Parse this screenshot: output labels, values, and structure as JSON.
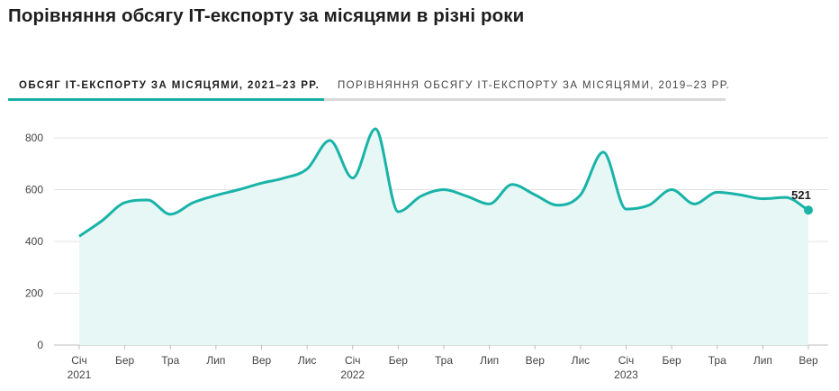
{
  "title": "Порівняння обсягу IT-експорту за місяцями в різні роки",
  "tabs": [
    {
      "label": "Обсяг IT-експорту за місяцями, 2021–23 рр.",
      "active": true
    },
    {
      "label": "Порівняння обсягу IT-експорту за місяцями, 2019–23 рр.",
      "active": false
    }
  ],
  "colors": {
    "line": "#19b3a8",
    "area": "#e6f7f6",
    "grid": "#e3e3e3",
    "tab_active": "#18b0a5"
  },
  "chart_data": {
    "type": "area",
    "ylim": [
      0,
      800
    ],
    "yticks": [
      0,
      200,
      400,
      600,
      800
    ],
    "grid": true,
    "x": [
      "2021-01",
      "2021-02",
      "2021-03",
      "2021-04",
      "2021-05",
      "2021-06",
      "2021-07",
      "2021-08",
      "2021-09",
      "2021-10",
      "2021-11",
      "2021-12",
      "2022-01",
      "2022-02",
      "2022-03",
      "2022-04",
      "2022-05",
      "2022-06",
      "2022-07",
      "2022-08",
      "2022-09",
      "2022-10",
      "2022-11",
      "2022-12",
      "2023-01",
      "2023-02",
      "2023-03",
      "2023-04",
      "2023-05",
      "2023-06",
      "2023-07",
      "2023-08",
      "2023-09"
    ],
    "values": [
      420,
      480,
      550,
      560,
      505,
      550,
      578,
      600,
      625,
      645,
      680,
      790,
      645,
      835,
      515,
      575,
      600,
      575,
      545,
      620,
      580,
      540,
      580,
      745,
      525,
      540,
      600,
      545,
      590,
      580,
      565,
      570,
      521
    ],
    "xtick_labels": [
      {
        "index": 0,
        "label": "Січ",
        "year": "2021"
      },
      {
        "index": 2,
        "label": "Бер"
      },
      {
        "index": 4,
        "label": "Тра"
      },
      {
        "index": 6,
        "label": "Лип"
      },
      {
        "index": 8,
        "label": "Вер"
      },
      {
        "index": 10,
        "label": "Лис"
      },
      {
        "index": 12,
        "label": "Січ",
        "year": "2022"
      },
      {
        "index": 14,
        "label": "Бер"
      },
      {
        "index": 16,
        "label": "Тра"
      },
      {
        "index": 18,
        "label": "Лип"
      },
      {
        "index": 20,
        "label": "Вер"
      },
      {
        "index": 22,
        "label": "Лис"
      },
      {
        "index": 24,
        "label": "Січ",
        "year": "2023"
      },
      {
        "index": 26,
        "label": "Бер"
      },
      {
        "index": 28,
        "label": "Тра"
      },
      {
        "index": 30,
        "label": "Лип"
      },
      {
        "index": 32,
        "label": "Вер"
      }
    ],
    "end_label": "521"
  }
}
